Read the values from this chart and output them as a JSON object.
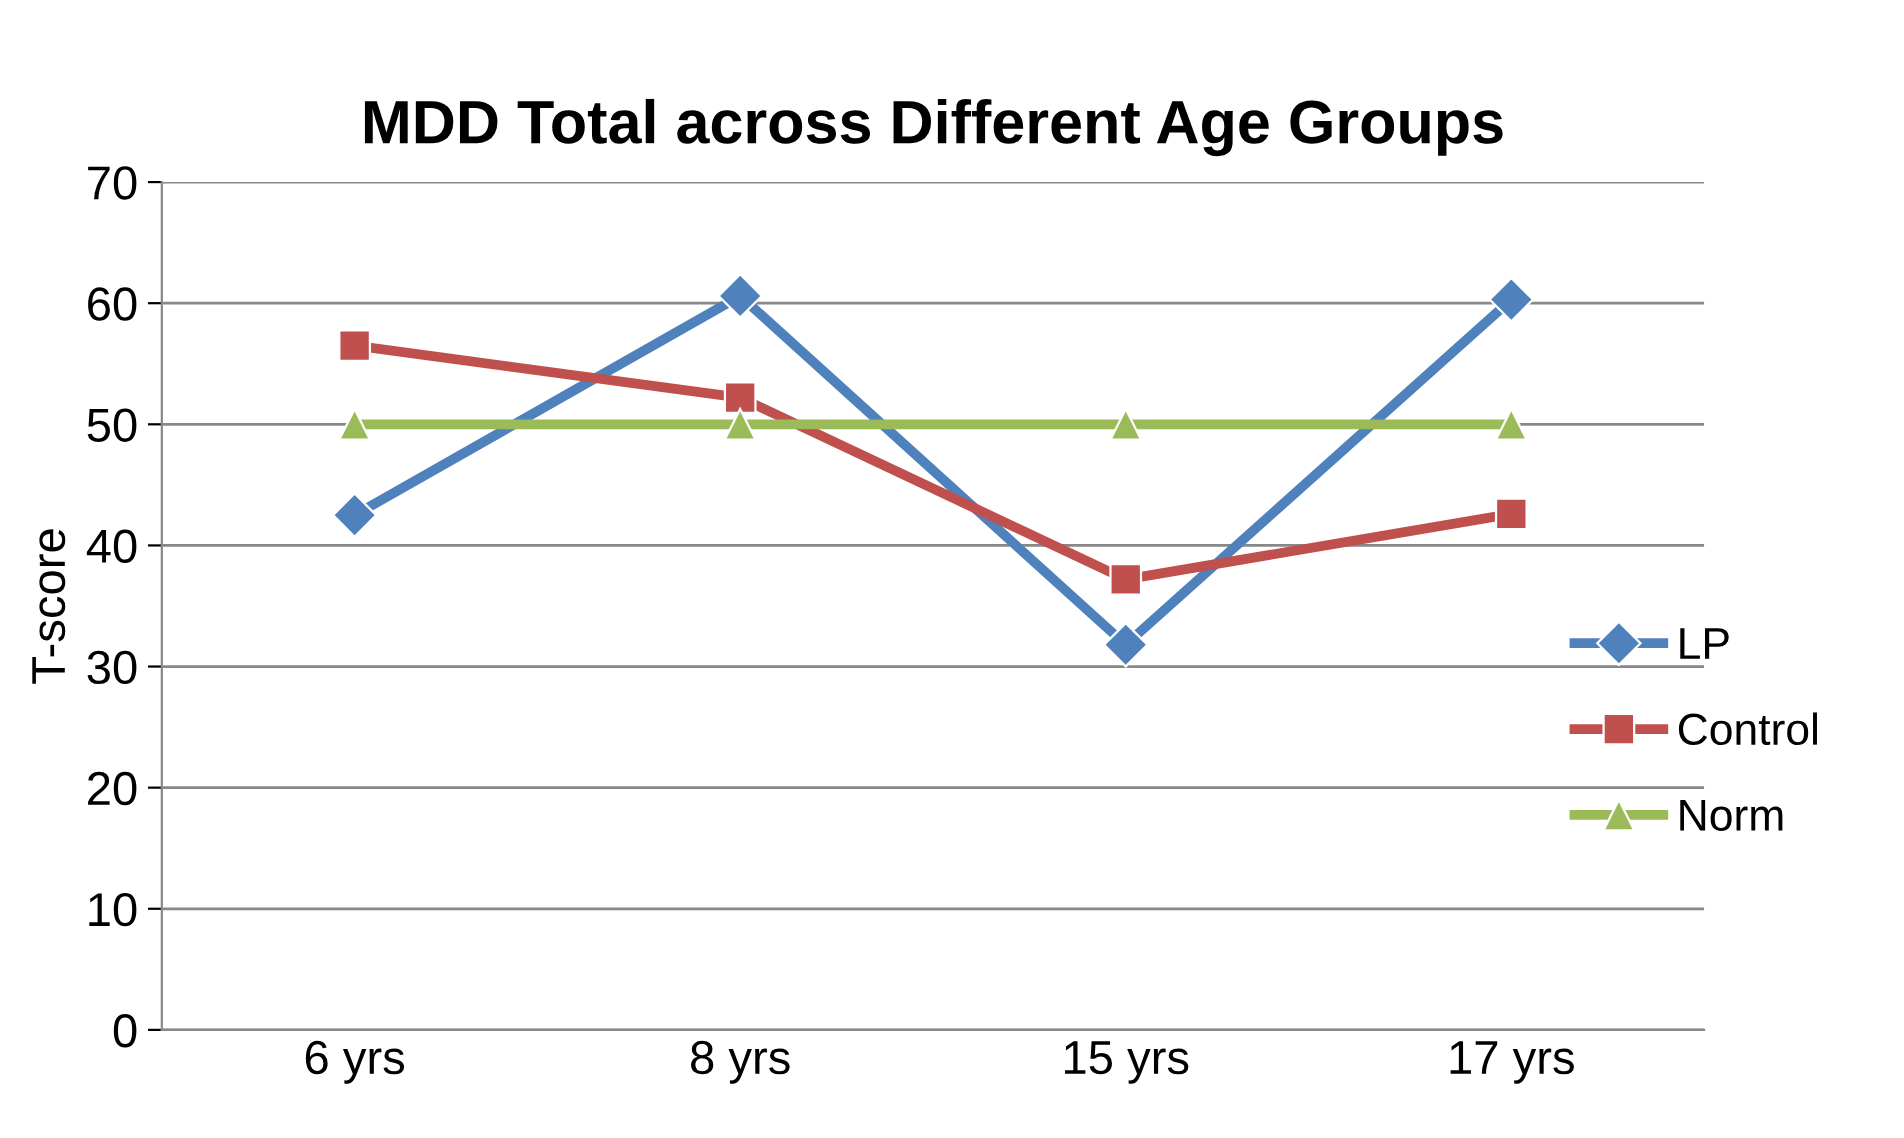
{
  "chart_data": {
    "type": "line",
    "title": "MDD Total across Different Age Groups",
    "ylabel": "T-score",
    "categories": [
      "6 yrs",
      "8 yrs",
      "15 yrs",
      "17 yrs"
    ],
    "series": [
      {
        "name": "LP",
        "color": "#4f81bd",
        "marker": "diamond",
        "values": [
          42.5,
          60.6,
          31.8,
          60.3
        ]
      },
      {
        "name": "Control",
        "color": "#c0504d",
        "marker": "square",
        "values": [
          56.5,
          52.2,
          37.2,
          42.6
        ]
      },
      {
        "name": "Norm",
        "color": "#9bbb59",
        "marker": "triangle",
        "values": [
          50,
          50,
          50,
          50
        ]
      }
    ],
    "ylim": [
      0,
      70
    ],
    "yticks": [
      0,
      10,
      20,
      30,
      40,
      50,
      60,
      70
    ],
    "grid": "y",
    "legend": "right",
    "line_style": "solid"
  }
}
